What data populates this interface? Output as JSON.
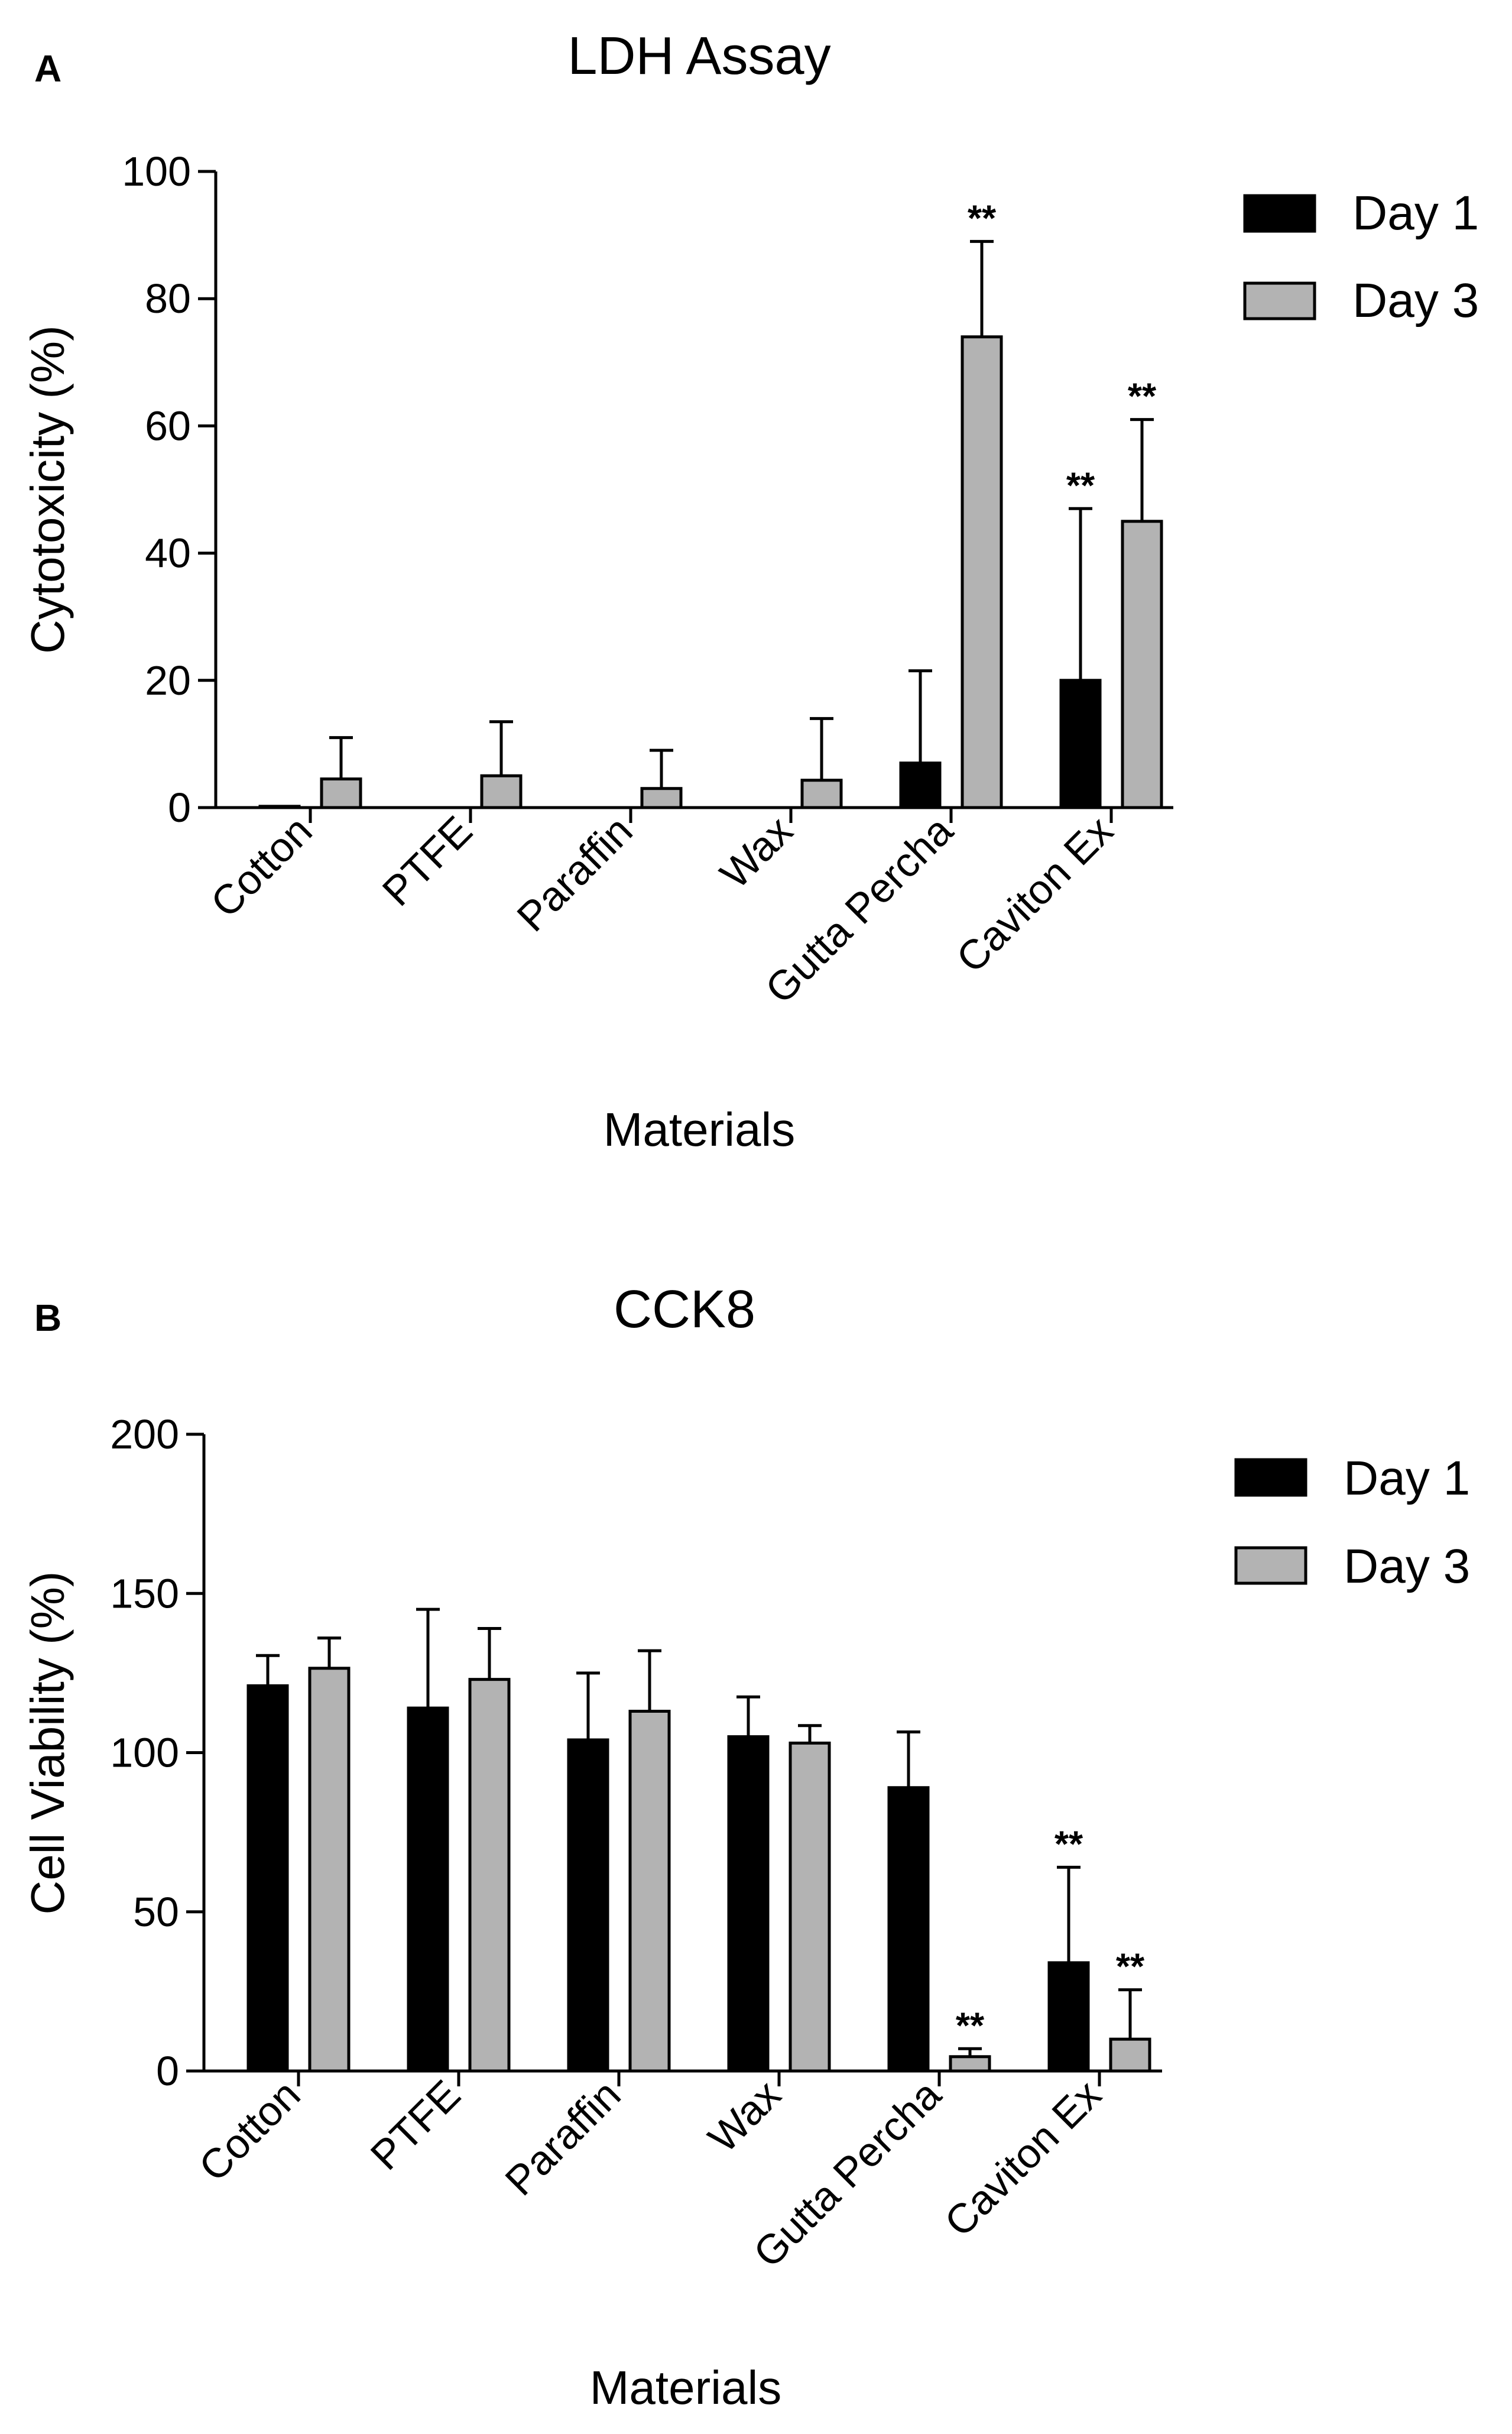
{
  "chart_data": [
    {
      "panel": "A",
      "type": "bar",
      "title": "LDH Assay",
      "xlabel": "Materials",
      "ylabel": "Cytotoxicity (%)",
      "ylim": [
        0,
        100
      ],
      "yticks": [
        0,
        20,
        40,
        60,
        80,
        100
      ],
      "categories": [
        "Cotton",
        "PTFE",
        "Paraffin",
        "Wax",
        "Gutta Percha",
        "Caviton Ex"
      ],
      "series": [
        {
          "name": "Day 1",
          "color": "#000000",
          "values": [
            0.2,
            0,
            0,
            0,
            7,
            20
          ],
          "errors": [
            0,
            0,
            0,
            0,
            14.5,
            27
          ],
          "significance": [
            "",
            "",
            "",
            "",
            "",
            "**"
          ]
        },
        {
          "name": "Day 3",
          "color": "#b3b3b3",
          "values": [
            4.5,
            5,
            3,
            4.3,
            74,
            45
          ],
          "errors": [
            6.5,
            8.5,
            6,
            9.7,
            15,
            16
          ],
          "significance": [
            "",
            "",
            "",
            "",
            "**",
            "**"
          ]
        }
      ],
      "legend": "top-right"
    },
    {
      "panel": "B",
      "type": "bar",
      "title": "CCK8",
      "xlabel": "Materials",
      "ylabel": "Cell Viability (%)",
      "ylim": [
        0,
        200
      ],
      "yticks": [
        0,
        50,
        100,
        150,
        200
      ],
      "categories": [
        "Cotton",
        "PTFE",
        "Paraffin",
        "Wax",
        "Gutta Percha",
        "Caviton Ex"
      ],
      "series": [
        {
          "name": "Day 1",
          "color": "#000000",
          "values": [
            121,
            114,
            104,
            105,
            89,
            34
          ],
          "errors": [
            9.5,
            31,
            21,
            12.5,
            17.5,
            30
          ],
          "significance": [
            "",
            "",
            "",
            "",
            "",
            "**"
          ]
        },
        {
          "name": "Day 3",
          "color": "#b3b3b3",
          "values": [
            126.5,
            123,
            113,
            103,
            4.5,
            10
          ],
          "errors": [
            9.5,
            16,
            19,
            5.5,
            2.5,
            15.5
          ],
          "significance": [
            "",
            "",
            "",
            "",
            "**",
            "**"
          ]
        }
      ],
      "legend": "top-right"
    }
  ]
}
